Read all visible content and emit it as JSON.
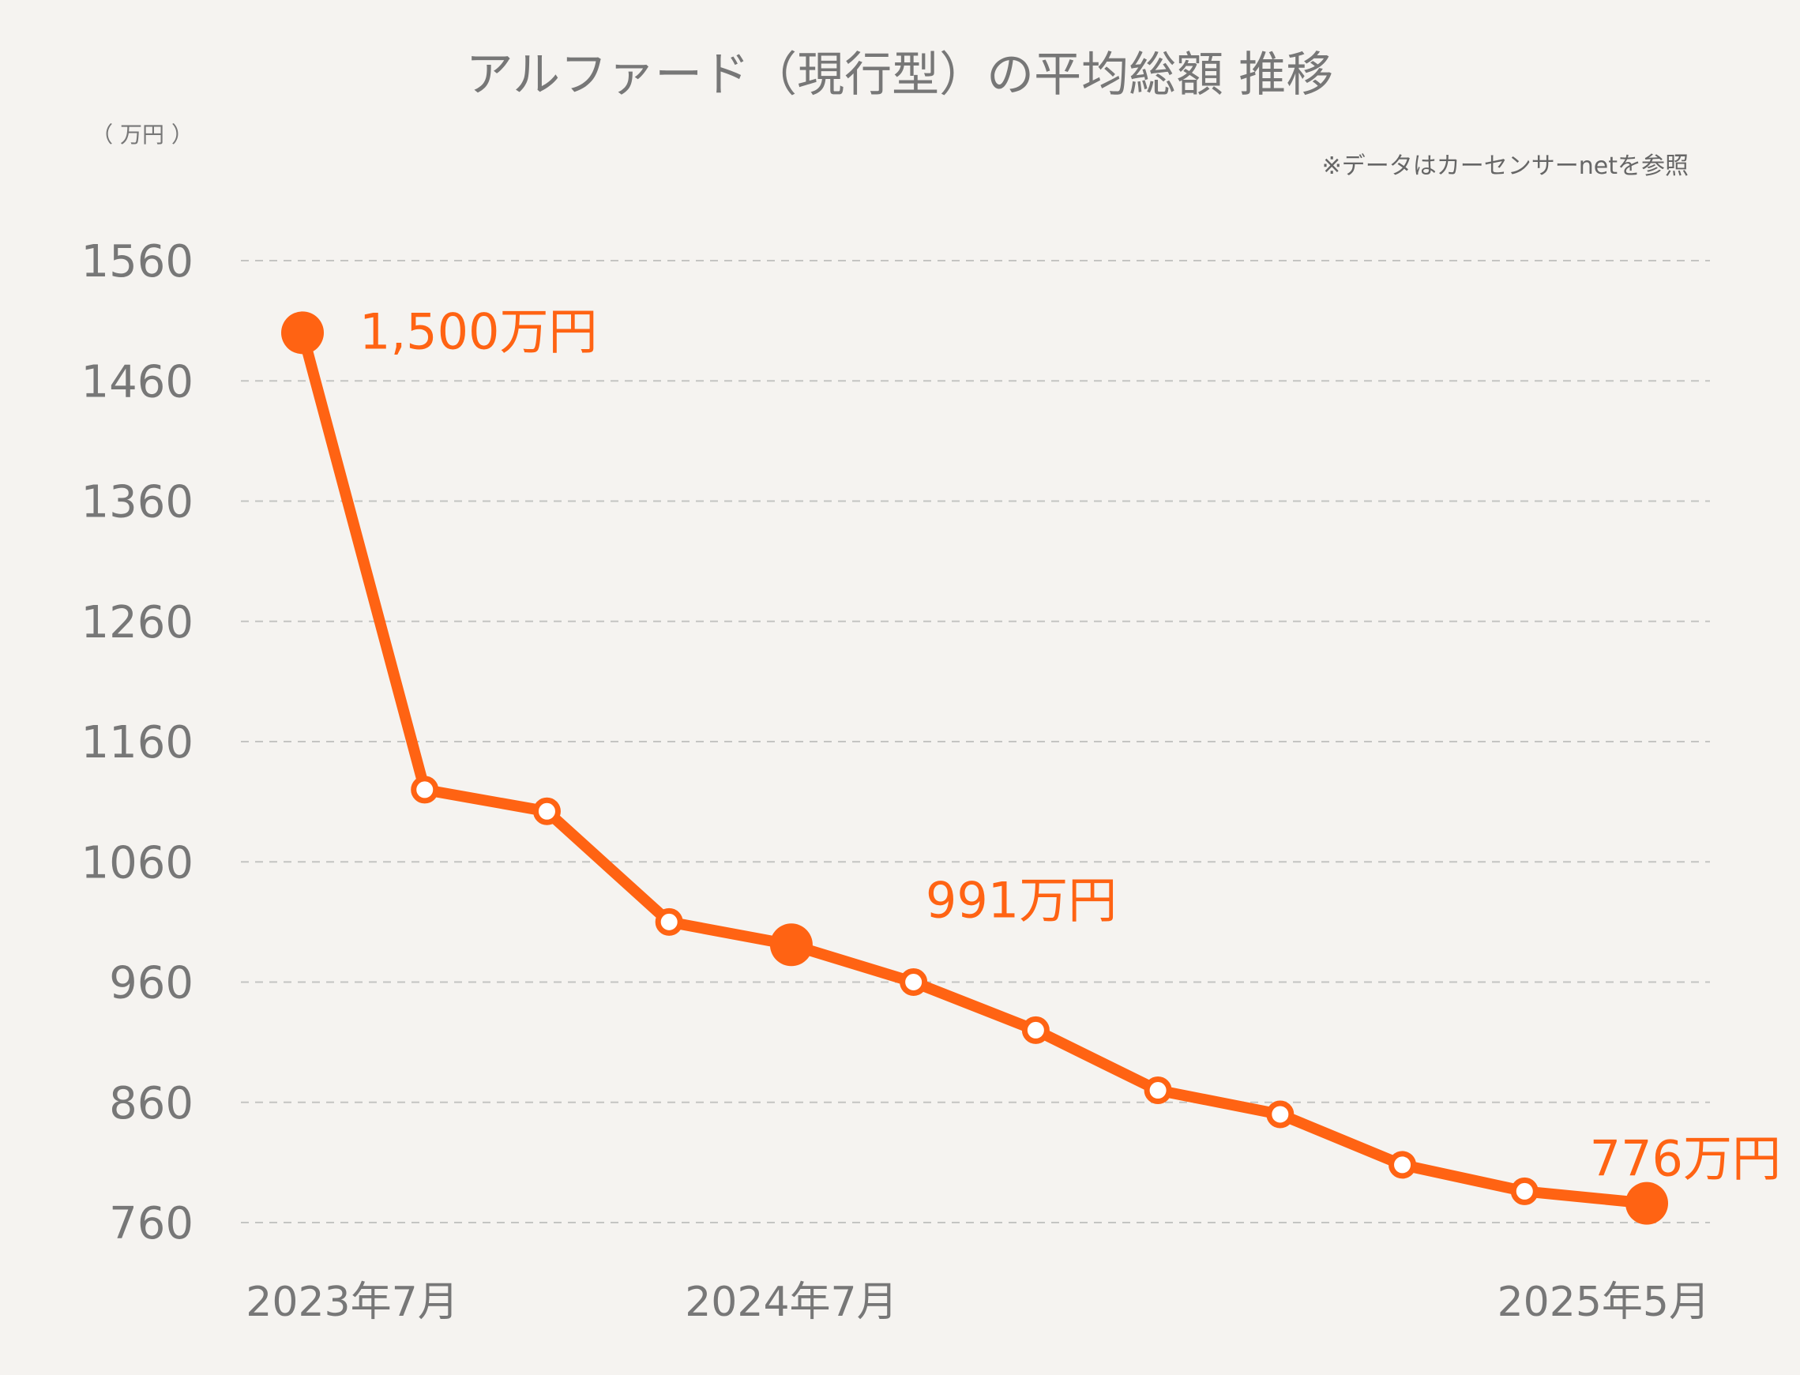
{
  "chart_data": {
    "type": "line",
    "title": "アルファード（現行型）の平均総額 推移",
    "unit_label": "（ 万円 ）",
    "source_note": "※データはカーセンサーnetを参照",
    "ylim": [
      760,
      1560
    ],
    "y_ticks": [
      1560,
      1460,
      1360,
      1260,
      1160,
      1060,
      960,
      860,
      760
    ],
    "x_tick_labels": [
      {
        "index": 0,
        "label": "2023年7月"
      },
      {
        "index": 4,
        "label": "2024年7月"
      },
      {
        "index": 11,
        "label": "2025年5月"
      }
    ],
    "grid": true,
    "series": [
      {
        "name": "平均総額",
        "color": "#ff6313",
        "values": [
          1500,
          1120,
          1102,
          1010,
          991,
          960,
          920,
          870,
          850,
          808,
          786,
          776
        ]
      }
    ],
    "annotations": [
      {
        "index": 0,
        "text": "1,500万円"
      },
      {
        "index": 4,
        "text": "991万円"
      },
      {
        "index": 11,
        "text": "776万円"
      }
    ]
  }
}
